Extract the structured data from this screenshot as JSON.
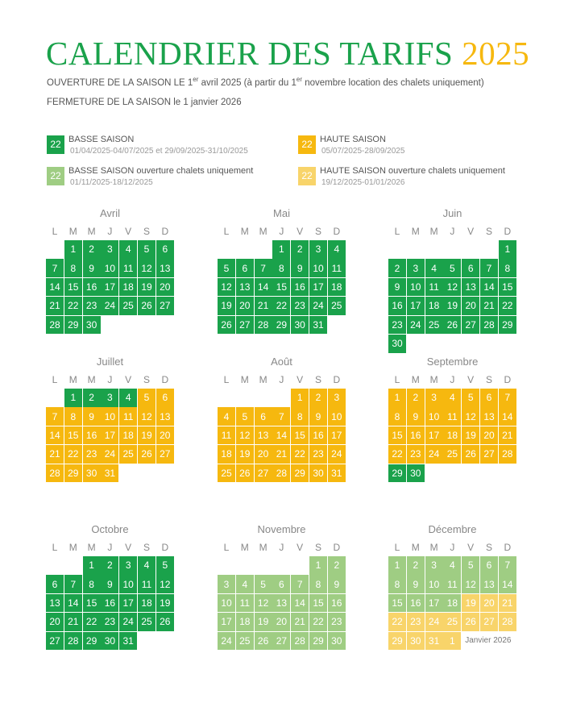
{
  "header": {
    "title": "CALENDRIER DES TARIFS",
    "year": "2025",
    "opening": [
      "OUVERTURE DE LA SAISON LE 1",
      "er",
      " avril 2025 (à partir du 1",
      "er",
      " novembre location des chalets uniquement)"
    ],
    "closing": "FERMETURE DE LA SAISON le 1 janvier 2026"
  },
  "legend": [
    {
      "sample": "22",
      "label": "BASSE SAISON",
      "dates": "01/04/2025-04/07/2025 et 29/09/2025-31/10/2025",
      "color": "#1aa24b"
    },
    {
      "sample": "22",
      "label": "HAUTE SAISON",
      "dates": "05/07/2025-28/09/2025",
      "color": "#f6b80f"
    },
    {
      "sample": "22",
      "label": "BASSE SAISON ouverture chalets uniquement",
      "dates": "01/11/2025-18/12/2025",
      "color": "#9fcd83"
    },
    {
      "sample": "22",
      "label": "HAUTE SAISON ouverture chalets uniquement",
      "dates": "19/12/2025-01/01/2026",
      "color": "#f8d46a"
    }
  ],
  "weekdays": [
    "L",
    "M",
    "M",
    "J",
    "V",
    "S",
    "D"
  ],
  "months": [
    {
      "name": "Avril",
      "weeks": [
        [
          null,
          1,
          2,
          3,
          4,
          5,
          6
        ],
        [
          7,
          8,
          9,
          10,
          11,
          12,
          13
        ],
        [
          14,
          15,
          16,
          17,
          18,
          19,
          20
        ],
        [
          21,
          22,
          23,
          24,
          25,
          26,
          27
        ],
        [
          28,
          29,
          30
        ]
      ],
      "seasons": [
        [
          null,
          0,
          0,
          0,
          0,
          0,
          0
        ],
        [
          0,
          0,
          0,
          0,
          0,
          0,
          0
        ],
        [
          0,
          0,
          0,
          0,
          0,
          0,
          0
        ],
        [
          0,
          0,
          0,
          0,
          0,
          0,
          0
        ],
        [
          0,
          0,
          0
        ]
      ]
    },
    {
      "name": "Mai",
      "weeks": [
        [
          null,
          null,
          null,
          1,
          2,
          3,
          4
        ],
        [
          5,
          6,
          7,
          8,
          9,
          10,
          11
        ],
        [
          12,
          13,
          14,
          15,
          16,
          17,
          18
        ],
        [
          19,
          20,
          21,
          22,
          23,
          24,
          25
        ],
        [
          26,
          27,
          28,
          29,
          30,
          31
        ]
      ],
      "seasons": [
        [
          null,
          null,
          null,
          0,
          0,
          0,
          0
        ],
        [
          0,
          0,
          0,
          0,
          0,
          0,
          0
        ],
        [
          0,
          0,
          0,
          0,
          0,
          0,
          0
        ],
        [
          0,
          0,
          0,
          0,
          0,
          0,
          0
        ],
        [
          0,
          0,
          0,
          0,
          0,
          0
        ]
      ]
    },
    {
      "name": "Juin",
      "weeks": [
        [
          null,
          null,
          null,
          null,
          null,
          null,
          1
        ],
        [
          2,
          3,
          4,
          5,
          6,
          7,
          8
        ],
        [
          9,
          10,
          11,
          12,
          13,
          14,
          15
        ],
        [
          16,
          17,
          18,
          19,
          20,
          21,
          22
        ],
        [
          23,
          24,
          25,
          26,
          27,
          28,
          29
        ],
        [
          30
        ]
      ],
      "seasons": [
        [
          null,
          null,
          null,
          null,
          null,
          null,
          0
        ],
        [
          0,
          0,
          0,
          0,
          0,
          0,
          0
        ],
        [
          0,
          0,
          0,
          0,
          0,
          0,
          0
        ],
        [
          0,
          0,
          0,
          0,
          0,
          0,
          0
        ],
        [
          0,
          0,
          0,
          0,
          0,
          0,
          0
        ],
        [
          0
        ]
      ]
    },
    {
      "name": "Juillet",
      "weeks": [
        [
          null,
          1,
          2,
          3,
          4,
          5,
          6
        ],
        [
          7,
          8,
          9,
          10,
          11,
          12,
          13
        ],
        [
          14,
          15,
          16,
          17,
          18,
          19,
          20
        ],
        [
          21,
          22,
          23,
          24,
          25,
          26,
          27
        ],
        [
          28,
          29,
          30,
          31
        ]
      ],
      "seasons": [
        [
          null,
          0,
          0,
          0,
          0,
          1,
          1
        ],
        [
          1,
          1,
          1,
          1,
          1,
          1,
          1
        ],
        [
          1,
          1,
          1,
          1,
          1,
          1,
          1
        ],
        [
          1,
          1,
          1,
          1,
          1,
          1,
          1
        ],
        [
          1,
          1,
          1,
          1
        ]
      ]
    },
    {
      "name": "Août",
      "weeks": [
        [
          null,
          null,
          null,
          null,
          1,
          2,
          3
        ],
        [
          4,
          5,
          6,
          7,
          8,
          9,
          10
        ],
        [
          11,
          12,
          13,
          14,
          15,
          16,
          17
        ],
        [
          18,
          19,
          20,
          21,
          22,
          23,
          24
        ],
        [
          25,
          26,
          27,
          28,
          29,
          30,
          31
        ]
      ],
      "seasons": [
        [
          null,
          null,
          null,
          null,
          1,
          1,
          1
        ],
        [
          1,
          1,
          1,
          1,
          1,
          1,
          1
        ],
        [
          1,
          1,
          1,
          1,
          1,
          1,
          1
        ],
        [
          1,
          1,
          1,
          1,
          1,
          1,
          1
        ],
        [
          1,
          1,
          1,
          1,
          1,
          1,
          1
        ]
      ]
    },
    {
      "name": "Septembre",
      "weeks": [
        [
          1,
          2,
          3,
          4,
          5,
          6,
          7
        ],
        [
          8,
          9,
          10,
          11,
          12,
          13,
          14
        ],
        [
          15,
          16,
          17,
          18,
          19,
          20,
          21
        ],
        [
          22,
          23,
          24,
          25,
          26,
          27,
          28
        ],
        [
          29,
          30
        ]
      ],
      "seasons": [
        [
          1,
          1,
          1,
          1,
          1,
          1,
          1
        ],
        [
          1,
          1,
          1,
          1,
          1,
          1,
          1
        ],
        [
          1,
          1,
          1,
          1,
          1,
          1,
          1
        ],
        [
          1,
          1,
          1,
          1,
          1,
          1,
          1
        ],
        [
          0,
          0
        ]
      ]
    },
    {
      "name": "Octobre",
      "weeks": [
        [
          null,
          null,
          1,
          2,
          3,
          4,
          5
        ],
        [
          6,
          7,
          8,
          9,
          10,
          11,
          12
        ],
        [
          13,
          14,
          15,
          16,
          17,
          18,
          19
        ],
        [
          20,
          21,
          22,
          23,
          24,
          25,
          26
        ],
        [
          27,
          28,
          29,
          30,
          31
        ]
      ],
      "seasons": [
        [
          null,
          null,
          0,
          0,
          0,
          0,
          0
        ],
        [
          0,
          0,
          0,
          0,
          0,
          0,
          0
        ],
        [
          0,
          0,
          0,
          0,
          0,
          0,
          0
        ],
        [
          0,
          0,
          0,
          0,
          0,
          0,
          0
        ],
        [
          0,
          0,
          0,
          0,
          0
        ]
      ]
    },
    {
      "name": "Novembre",
      "weeks": [
        [
          null,
          null,
          null,
          null,
          null,
          1,
          2
        ],
        [
          3,
          4,
          5,
          6,
          7,
          8,
          9
        ],
        [
          10,
          11,
          12,
          13,
          14,
          15,
          16
        ],
        [
          17,
          18,
          19,
          20,
          21,
          22,
          23
        ],
        [
          24,
          25,
          26,
          27,
          28,
          29,
          30
        ]
      ],
      "seasons": [
        [
          null,
          null,
          null,
          null,
          null,
          2,
          2
        ],
        [
          2,
          2,
          2,
          2,
          2,
          2,
          2
        ],
        [
          2,
          2,
          2,
          2,
          2,
          2,
          2
        ],
        [
          2,
          2,
          2,
          2,
          2,
          2,
          2
        ],
        [
          2,
          2,
          2,
          2,
          2,
          2,
          2
        ]
      ]
    },
    {
      "name": "Décembre",
      "weeks": [
        [
          1,
          2,
          3,
          4,
          5,
          6,
          7
        ],
        [
          8,
          9,
          10,
          11,
          12,
          13,
          14
        ],
        [
          15,
          16,
          17,
          18,
          19,
          20,
          21
        ],
        [
          22,
          23,
          24,
          25,
          26,
          27,
          28
        ],
        [
          29,
          30,
          31,
          1
        ]
      ],
      "seasons": [
        [
          2,
          2,
          2,
          2,
          2,
          2,
          2
        ],
        [
          2,
          2,
          2,
          2,
          2,
          2,
          2
        ],
        [
          2,
          2,
          2,
          2,
          3,
          3,
          3
        ],
        [
          3,
          3,
          3,
          3,
          3,
          3,
          3
        ],
        [
          3,
          3,
          3,
          3
        ]
      ],
      "note": "Janvier 2026"
    }
  ]
}
